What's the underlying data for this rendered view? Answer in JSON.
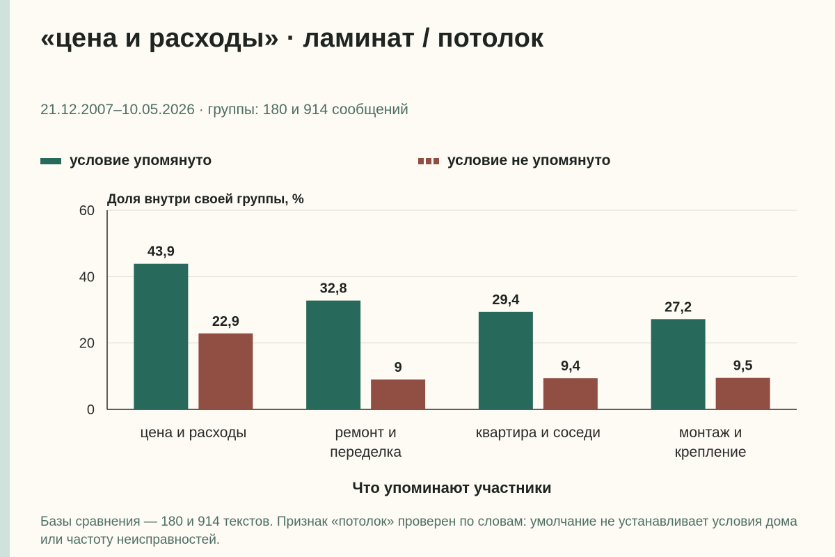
{
  "title": "«цена и расходы» · ламинат / потолок",
  "subtitle": "21.12.2007–10.05.2026 · группы: 180 и 914 сообщений",
  "footnote": "Базы сравнения — 180 и 914 текстов. Признак «потолок» проверен по словам: умолчание не устанавливает условия дома или частоту неисправностей.",
  "colors": {
    "mentioned": "#27695a",
    "not_mentioned": "#914f43",
    "grid": "#d9d9d2",
    "axis": "#2b2b2b"
  },
  "chart_data": {
    "type": "bar",
    "categories": [
      [
        "цена и расходы"
      ],
      [
        "ремонт и",
        "переделка"
      ],
      [
        "квартира и соседи"
      ],
      [
        "монтаж и",
        "крепление"
      ]
    ],
    "series": [
      {
        "name": "условие упомянуто",
        "values": [
          43.9,
          32.8,
          29.4,
          27.2
        ],
        "labels": [
          "43,9",
          "32,8",
          "29,4",
          "27,2"
        ]
      },
      {
        "name": "условие не упомянуто",
        "values": [
          22.9,
          9,
          9.4,
          9.5
        ],
        "labels": [
          "22,9",
          "9",
          "9,4",
          "9,5"
        ]
      }
    ],
    "ylabel": "Доля внутри своей группы, %",
    "xlabel": "Что упоминают участники",
    "ylim": [
      0,
      60
    ],
    "yticks": [
      0,
      20,
      40,
      60
    ],
    "grid": true,
    "legend_position": "top"
  }
}
